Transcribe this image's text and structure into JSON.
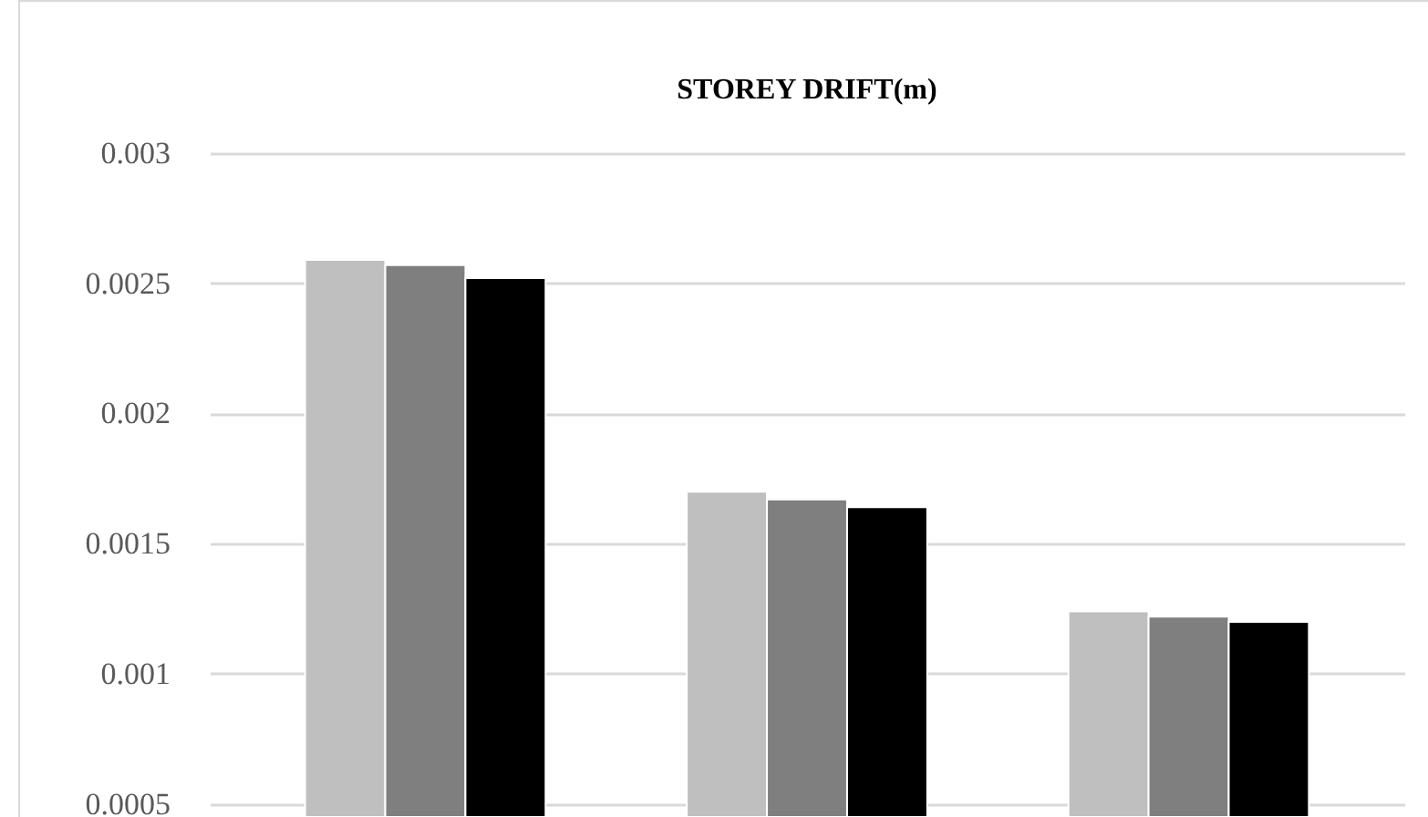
{
  "chart_data": {
    "type": "bar",
    "title": "STOREY DRIFT(m)",
    "categories": [
      null,
      null,
      null
    ],
    "series": [
      {
        "color": "#bfbfbf",
        "values": [
          0.00259,
          0.0017,
          0.00124
        ]
      },
      {
        "color": "#7f7f7f",
        "values": [
          0.00257,
          0.00167,
          0.00122
        ]
      },
      {
        "color": "#000000",
        "values": [
          0.00252,
          0.00164,
          0.0012
        ]
      }
    ],
    "ylim": [
      0.00045,
      0.003
    ],
    "yticks": [
      0.0005,
      0.001,
      0.0015,
      0.002,
      0.0025,
      0.003
    ],
    "grid": "y",
    "legend": false,
    "tick_labels": "y"
  }
}
